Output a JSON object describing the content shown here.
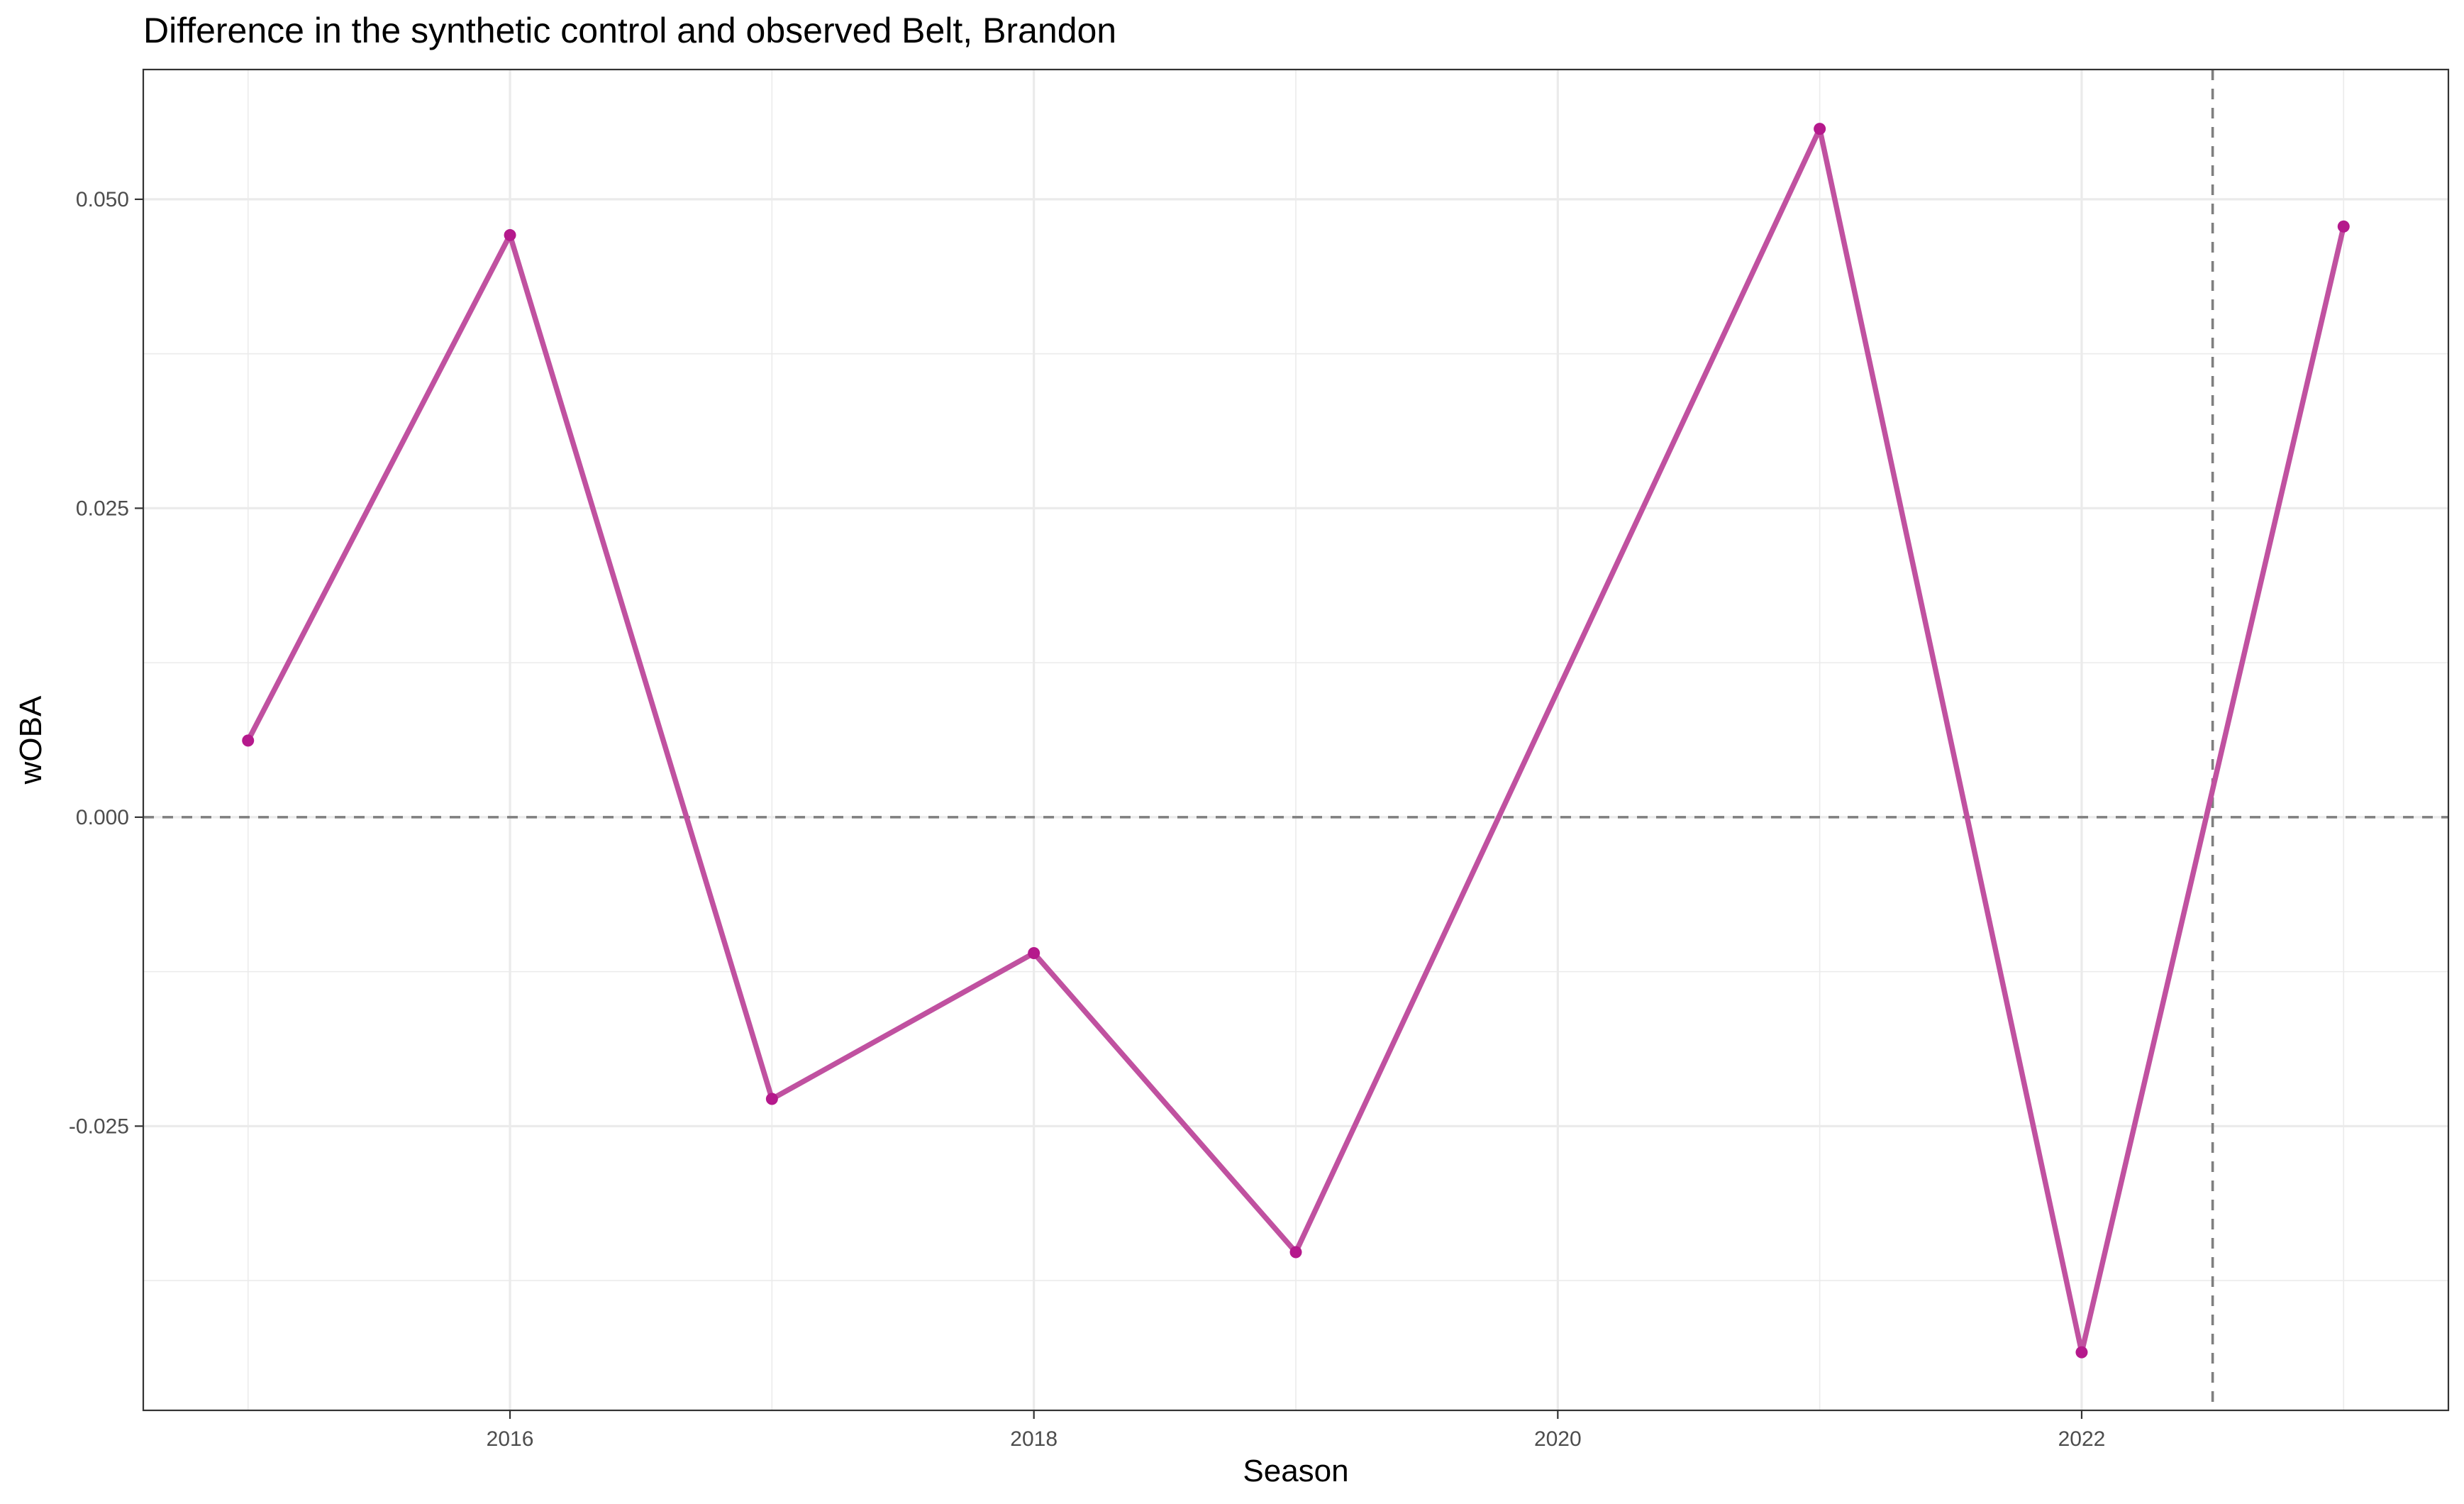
{
  "chart_data": {
    "type": "line",
    "title": "Difference in the synthetic control and observed Belt, Brandon",
    "xlabel": "Season",
    "ylabel": "wOBA",
    "x": [
      2015,
      2016,
      2017,
      2018,
      2019,
      2021,
      2022,
      2023
    ],
    "series": [
      {
        "values": [
          0.0062,
          0.0471,
          -0.0228,
          -0.011,
          -0.0352,
          0.0557,
          -0.0433,
          0.0478
        ],
        "color": "#c051a0",
        "point_color": "#b5198c"
      }
    ],
    "xlim": [
      2014.6,
      2023.4
    ],
    "ylim": [
      -0.048,
      0.0605
    ],
    "x_ticks": [
      2016,
      2018,
      2020,
      2022
    ],
    "x_tick_labels": [
      "2016",
      "2018",
      "2020",
      "2022"
    ],
    "y_ticks": [
      -0.025,
      0.0,
      0.025,
      0.05
    ],
    "y_tick_labels": [
      "-0.025",
      "0.000",
      "0.025",
      "0.050"
    ],
    "reference_lines": {
      "horizontal": 0.0,
      "vertical": 2022.5
    },
    "grid": true
  }
}
